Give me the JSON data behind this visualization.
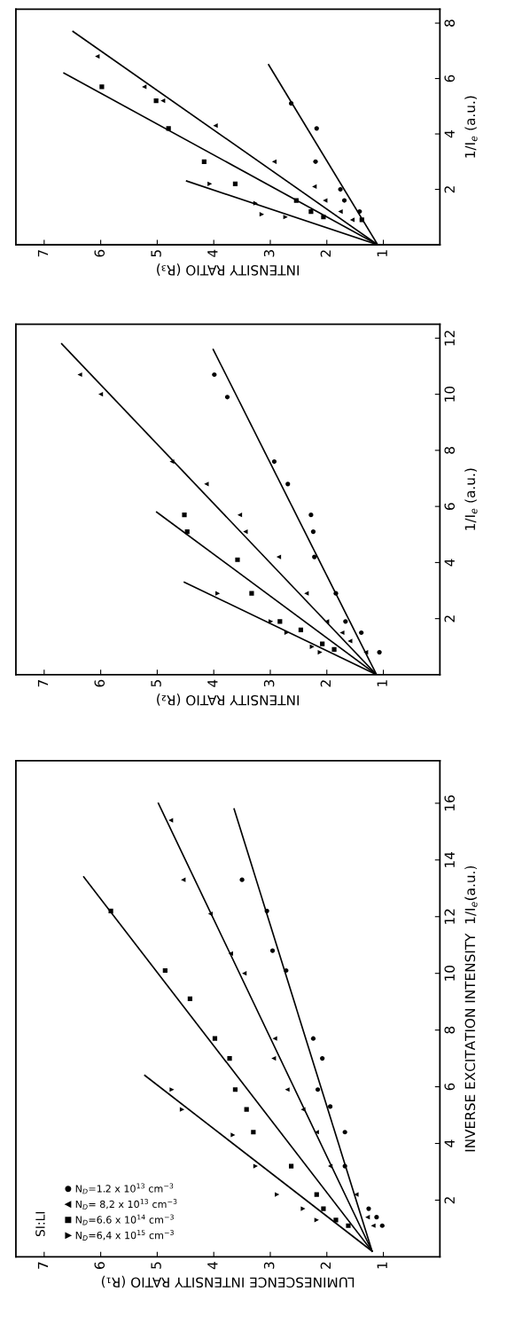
{
  "chart_data": [
    {
      "type": "scatter",
      "xlabel": "LUMINESCENCE INTENSITY RATIO (R₁)",
      "ylabel": "INVERSE EXCITATION INTENSITY  1/I$_{e}$(a.u.)",
      "xlim": [
        7.5,
        0
      ],
      "xticks": [
        1,
        2,
        3,
        4,
        5,
        6,
        7
      ],
      "ylim": [
        0,
        17.5
      ],
      "yticks": [
        2,
        4,
        6,
        8,
        10,
        12,
        14,
        16
      ],
      "annotations": [
        "SI:LI"
      ],
      "legend": "bottom left",
      "series": [
        {
          "name": "N$_{D}$=1.2 x 10$^{13}$ cm$^{−3}$",
          "marker": "circle",
          "color": "#000000",
          "x": [
            3.5,
            3.06,
            2.96,
            2.72,
            2.24,
            2.08,
            2.16,
            1.94,
            1.68,
            1.68,
            1.26,
            1.12,
            1.02
          ],
          "values": [
            13.3,
            12.2,
            10.8,
            10.1,
            7.7,
            7.0,
            5.9,
            5.3,
            4.4,
            3.2,
            1.7,
            1.4,
            1.1
          ]
        },
        {
          "name": "N$_{D}$= 8,2 x 10$^{13}$ cm$^{−3}$",
          "marker": "triangle",
          "color": "#000000",
          "x": [
            4.76,
            4.54,
            4.06,
            3.7,
            3.46,
            2.92,
            2.94,
            2.7,
            2.42,
            2.18,
            1.94,
            1.48,
            1.28,
            1.18
          ],
          "values": [
            15.4,
            13.3,
            12.1,
            10.7,
            10.0,
            7.7,
            7.0,
            5.9,
            5.2,
            4.4,
            3.2,
            2.2,
            1.4,
            1.1
          ]
        },
        {
          "name": "N$_{D}$=6.6 x 10$^{14}$ cm$^{−3}$",
          "marker": "square",
          "color": "#000000",
          "x": [
            5.82,
            4.86,
            4.42,
            3.98,
            3.72,
            3.62,
            3.42,
            3.3,
            2.63,
            2.18,
            2.06,
            1.84,
            1.62
          ],
          "values": [
            12.2,
            10.1,
            9.1,
            7.7,
            7.0,
            5.9,
            5.2,
            4.4,
            3.2,
            2.2,
            1.7,
            1.3,
            1.1
          ]
        },
        {
          "name": "N$_{D}$=6,4 x 10$^{15}$ cm$^{−3}$",
          "marker": "triangle_down",
          "color": "#000000",
          "x": [
            4.74,
            4.56,
            3.66,
            3.26,
            2.88,
            2.42,
            2.18
          ],
          "values": [
            5.9,
            5.2,
            4.3,
            3.2,
            2.2,
            1.7,
            1.3
          ]
        },
        {
          "type": "line",
          "color": "#000000",
          "x": [
            1.2,
            3.64
          ],
          "values": [
            0.2,
            15.8
          ]
        },
        {
          "type": "line",
          "color": "#000000",
          "x": [
            1.2,
            4.98
          ],
          "values": [
            0.2,
            16.0
          ]
        },
        {
          "type": "line",
          "color": "#000000",
          "x": [
            1.2,
            6.3
          ],
          "values": [
            0.2,
            13.4
          ]
        },
        {
          "type": "line",
          "color": "#000000",
          "x": [
            1.2,
            5.22
          ],
          "values": [
            0.2,
            6.4
          ]
        }
      ]
    },
    {
      "type": "scatter",
      "xlabel": "INTENSITY RATIO (R₂)",
      "ylabel": "1/I$_{e}$ (a.u.)",
      "xlim": [
        7.5,
        0
      ],
      "xticks": [
        1,
        2,
        3,
        4,
        5,
        6,
        7
      ],
      "ylim": [
        0,
        12.5
      ],
      "yticks": [
        2,
        4,
        6,
        8,
        10,
        12
      ],
      "series": [
        {
          "marker": "circle",
          "color": "#000000",
          "x": [
            3.99,
            3.76,
            2.93,
            2.69,
            2.28,
            2.24,
            2.22,
            1.84,
            1.67,
            1.39,
            1.07
          ],
          "values": [
            10.7,
            9.9,
            7.6,
            6.8,
            5.7,
            5.1,
            4.2,
            2.9,
            1.9,
            1.5,
            0.8
          ]
        },
        {
          "marker": "triangle",
          "color": "#000000",
          "x": [
            6.37,
            6.0,
            4.74,
            4.13,
            3.54,
            3.44,
            2.85,
            2.36,
            2.0,
            1.73,
            1.59,
            1.31
          ],
          "values": [
            10.7,
            10.0,
            7.6,
            6.8,
            5.7,
            5.1,
            4.2,
            2.9,
            1.9,
            1.5,
            1.2,
            0.8
          ]
        },
        {
          "marker": "square",
          "color": "#000000",
          "x": [
            4.52,
            4.47,
            3.58,
            3.33,
            2.83,
            2.46,
            2.08,
            1.87
          ],
          "values": [
            5.7,
            5.1,
            4.1,
            2.9,
            1.9,
            1.6,
            1.1,
            0.9
          ]
        },
        {
          "marker": "triangle_down",
          "color": "#000000",
          "x": [
            3.93,
            2.99,
            2.71,
            2.26,
            2.12
          ],
          "values": [
            2.9,
            1.9,
            1.5,
            1.0,
            0.8
          ]
        },
        {
          "type": "line",
          "color": "#000000",
          "x": [
            1.12,
            4.01
          ],
          "values": [
            0,
            11.6
          ]
        },
        {
          "type": "line",
          "color": "#000000",
          "x": [
            1.12,
            6.69
          ],
          "values": [
            0,
            11.8
          ]
        },
        {
          "type": "line",
          "color": "#000000",
          "x": [
            1.12,
            5.01
          ],
          "values": [
            0,
            5.8
          ]
        },
        {
          "type": "line",
          "color": "#000000",
          "x": [
            1.12,
            4.52
          ],
          "values": [
            0,
            3.3
          ]
        }
      ]
    },
    {
      "type": "scatter",
      "xlabel": "INTENSITY RATIO (R₃)",
      "ylabel": "1/I$_{e}$ (a.u.)",
      "xlim": [
        7.5,
        0
      ],
      "xticks": [
        1,
        2,
        3,
        4,
        5,
        6,
        7
      ],
      "ylim": [
        0,
        8.5
      ],
      "yticks": [
        2,
        4,
        6,
        8
      ],
      "series": [
        {
          "marker": "circle",
          "color": "#000000",
          "x": [
            2.63,
            2.18,
            2.2,
            1.76,
            1.69,
            1.42
          ],
          "values": [
            5.1,
            4.2,
            3.0,
            2.0,
            1.6,
            1.2
          ]
        },
        {
          "marker": "triangle",
          "color": "#000000",
          "x": [
            6.06,
            5.23,
            4.9,
            3.97,
            2.93,
            2.22,
            2.03,
            1.76,
            1.55
          ],
          "values": [
            6.8,
            5.7,
            5.2,
            4.3,
            3.0,
            2.1,
            1.6,
            1.2,
            0.9
          ]
        },
        {
          "marker": "square",
          "color": "#000000",
          "x": [
            5.98,
            5.02,
            4.8,
            4.17,
            3.62,
            2.54,
            2.28,
            2.06,
            1.38
          ],
          "values": [
            5.7,
            5.2,
            4.2,
            3.0,
            2.2,
            1.6,
            1.2,
            1.0,
            0.9
          ]
        },
        {
          "marker": "triangle_down",
          "color": "#000000",
          "x": [
            4.07,
            3.26,
            3.15,
            2.73
          ],
          "values": [
            2.2,
            1.5,
            1.1,
            1.0
          ]
        },
        {
          "type": "line",
          "color": "#000000",
          "x": [
            1.1,
            3.03
          ],
          "values": [
            0,
            6.5
          ]
        },
        {
          "type": "line",
          "color": "#000000",
          "x": [
            1.1,
            6.49
          ],
          "values": [
            0,
            7.7
          ]
        },
        {
          "type": "line",
          "color": "#000000",
          "x": [
            1.1,
            6.65
          ],
          "values": [
            0,
            6.2
          ]
        },
        {
          "type": "line",
          "color": "#000000",
          "x": [
            1.1,
            4.48
          ],
          "values": [
            0,
            2.3
          ]
        }
      ]
    }
  ]
}
